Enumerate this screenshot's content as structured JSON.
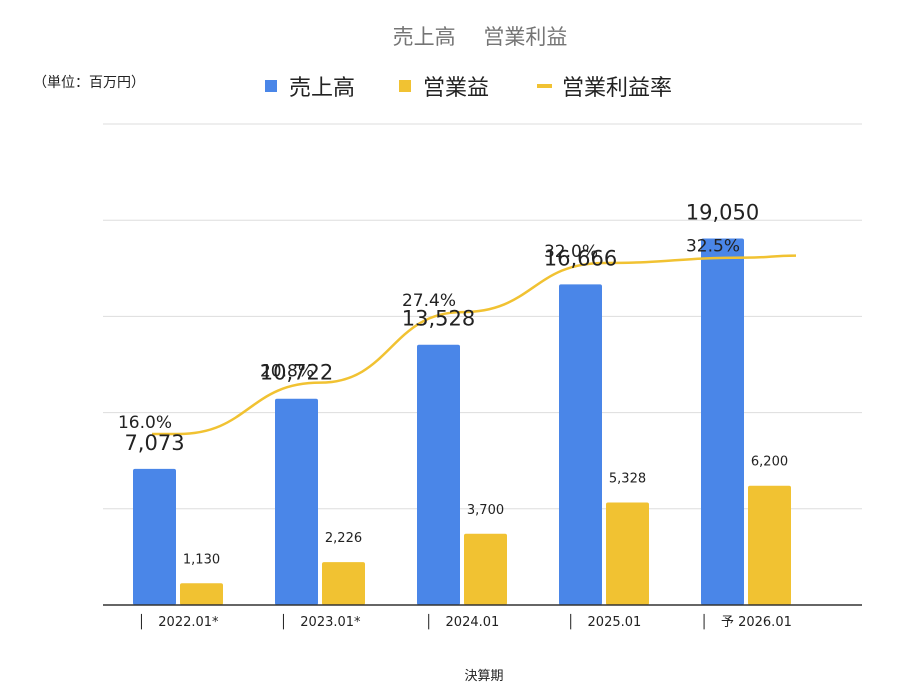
{
  "chart_data": {
    "type": "bar",
    "title": "売上高　 営業利益",
    "unit_note": "（単位：百万円）",
    "xlabel": "決算期",
    "ylabel": "",
    "categories": [
      "2022.01*",
      "2023.01*",
      "2024.01",
      "2025.01",
      "予 2026.01"
    ],
    "series": [
      {
        "name": "売上高",
        "kind": "bar",
        "color": "#4a86e8",
        "values": [
          7073,
          10722,
          13528,
          16666,
          19050
        ],
        "labels": [
          "7,073",
          "10,722",
          "13,528",
          "16,666",
          "19,050"
        ]
      },
      {
        "name": "営業益",
        "kind": "bar",
        "color": "#f1c232",
        "values": [
          1130,
          2226,
          3700,
          5328,
          6200
        ],
        "labels": [
          "1,130",
          "2,226",
          "3,700",
          "5,328",
          "6,200"
        ]
      },
      {
        "name": "営業利益率",
        "kind": "line",
        "color": "#f1c232",
        "values": [
          16.0,
          20.8,
          27.4,
          32.0,
          32.5
        ],
        "labels": [
          "16.0%",
          "20.8%",
          "27.4%",
          "32.0%",
          "32.5%"
        ]
      }
    ],
    "ylim": [
      0,
      25000
    ],
    "y2lim": [
      0,
      45
    ],
    "gridlines": 5,
    "grid": true,
    "legend_position": "top"
  }
}
